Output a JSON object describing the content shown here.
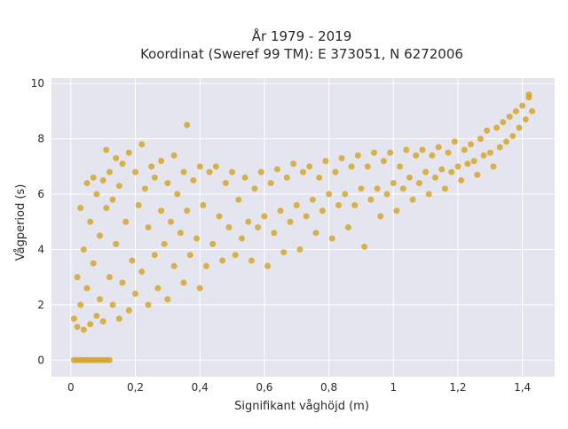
{
  "chart_data": {
    "type": "scatter",
    "title": "År 1979 - 2019",
    "subtitle": "Koordinat (Sweref 99 TM): E 373051, N 6272006",
    "xlabel": "Signifikant våghöjd (m)",
    "ylabel": "Vågperiod (s)",
    "xlim": [
      -0.06,
      1.5
    ],
    "ylim": [
      -0.6,
      10.2
    ],
    "x_ticks": [
      0,
      0.2,
      0.4,
      0.6,
      0.8,
      1,
      1.2,
      1.4
    ],
    "x_tick_labels": [
      "0",
      "0,2",
      "0,4",
      "0,6",
      "0,8",
      "1",
      "1,2",
      "1,4"
    ],
    "y_ticks": [
      0,
      2,
      4,
      6,
      8,
      10
    ],
    "y_tick_labels": [
      "0",
      "2",
      "4",
      "6",
      "8",
      "10"
    ],
    "grid": true,
    "marker_color": "#D4A21F",
    "background_color": "#E5E5EF",
    "points": [
      [
        0.01,
        0
      ],
      [
        0.02,
        0
      ],
      [
        0.03,
        0
      ],
      [
        0.04,
        0
      ],
      [
        0.05,
        0
      ],
      [
        0.06,
        0
      ],
      [
        0.07,
        0
      ],
      [
        0.08,
        0
      ],
      [
        0.09,
        0
      ],
      [
        0.1,
        0
      ],
      [
        0.11,
        0
      ],
      [
        0.12,
        0
      ],
      [
        0.01,
        1.5
      ],
      [
        0.02,
        1.2
      ],
      [
        0.02,
        3.0
      ],
      [
        0.03,
        5.5
      ],
      [
        0.03,
        2.0
      ],
      [
        0.04,
        1.1
      ],
      [
        0.04,
        4.0
      ],
      [
        0.05,
        6.4
      ],
      [
        0.05,
        2.6
      ],
      [
        0.06,
        1.3
      ],
      [
        0.06,
        5.0
      ],
      [
        0.07,
        6.6
      ],
      [
        0.07,
        3.5
      ],
      [
        0.08,
        1.6
      ],
      [
        0.08,
        6.0
      ],
      [
        0.09,
        2.2
      ],
      [
        0.09,
        4.5
      ],
      [
        0.1,
        6.5
      ],
      [
        0.1,
        1.4
      ],
      [
        0.11,
        5.5
      ],
      [
        0.11,
        7.6
      ],
      [
        0.12,
        3.0
      ],
      [
        0.12,
        6.8
      ],
      [
        0.13,
        2.0
      ],
      [
        0.13,
        5.8
      ],
      [
        0.14,
        7.3
      ],
      [
        0.14,
        4.2
      ],
      [
        0.15,
        1.5
      ],
      [
        0.15,
        6.3
      ],
      [
        0.16,
        2.8
      ],
      [
        0.16,
        7.1
      ],
      [
        0.17,
        5.0
      ],
      [
        0.18,
        1.8
      ],
      [
        0.18,
        7.5
      ],
      [
        0.19,
        3.6
      ],
      [
        0.2,
        6.8
      ],
      [
        0.2,
        2.4
      ],
      [
        0.21,
        5.6
      ],
      [
        0.22,
        7.8
      ],
      [
        0.22,
        3.2
      ],
      [
        0.23,
        6.2
      ],
      [
        0.24,
        2.0
      ],
      [
        0.24,
        4.8
      ],
      [
        0.25,
        7.0
      ],
      [
        0.26,
        3.8
      ],
      [
        0.26,
        6.6
      ],
      [
        0.27,
        2.6
      ],
      [
        0.28,
        5.4
      ],
      [
        0.28,
        7.2
      ],
      [
        0.29,
        4.2
      ],
      [
        0.3,
        6.4
      ],
      [
        0.3,
        2.2
      ],
      [
        0.31,
        5.0
      ],
      [
        0.32,
        7.4
      ],
      [
        0.32,
        3.4
      ],
      [
        0.33,
        6.0
      ],
      [
        0.34,
        4.6
      ],
      [
        0.35,
        6.8
      ],
      [
        0.35,
        2.8
      ],
      [
        0.36,
        8.5
      ],
      [
        0.36,
        5.4
      ],
      [
        0.37,
        3.8
      ],
      [
        0.38,
        6.5
      ],
      [
        0.39,
        4.4
      ],
      [
        0.4,
        7.0
      ],
      [
        0.4,
        2.6
      ],
      [
        0.41,
        5.6
      ],
      [
        0.42,
        3.4
      ],
      [
        0.43,
        6.8
      ],
      [
        0.44,
        4.2
      ],
      [
        0.45,
        7.0
      ],
      [
        0.46,
        5.2
      ],
      [
        0.47,
        3.6
      ],
      [
        0.48,
        6.4
      ],
      [
        0.49,
        4.8
      ],
      [
        0.5,
        6.8
      ],
      [
        0.51,
        3.8
      ],
      [
        0.52,
        5.8
      ],
      [
        0.53,
        4.4
      ],
      [
        0.54,
        6.6
      ],
      [
        0.55,
        5.0
      ],
      [
        0.56,
        3.6
      ],
      [
        0.57,
        6.2
      ],
      [
        0.58,
        4.8
      ],
      [
        0.59,
        6.8
      ],
      [
        0.6,
        5.2
      ],
      [
        0.61,
        3.4
      ],
      [
        0.62,
        6.4
      ],
      [
        0.63,
        4.6
      ],
      [
        0.64,
        6.9
      ],
      [
        0.65,
        5.4
      ],
      [
        0.66,
        3.9
      ],
      [
        0.67,
        6.6
      ],
      [
        0.68,
        5.0
      ],
      [
        0.69,
        7.1
      ],
      [
        0.7,
        5.6
      ],
      [
        0.71,
        4.0
      ],
      [
        0.72,
        6.8
      ],
      [
        0.73,
        5.2
      ],
      [
        0.74,
        7.0
      ],
      [
        0.75,
        5.8
      ],
      [
        0.76,
        4.6
      ],
      [
        0.77,
        6.6
      ],
      [
        0.78,
        5.4
      ],
      [
        0.79,
        7.2
      ],
      [
        0.8,
        6.0
      ],
      [
        0.81,
        4.4
      ],
      [
        0.82,
        6.8
      ],
      [
        0.83,
        5.6
      ],
      [
        0.84,
        7.3
      ],
      [
        0.85,
        6.0
      ],
      [
        0.86,
        4.8
      ],
      [
        0.87,
        7.0
      ],
      [
        0.88,
        5.6
      ],
      [
        0.89,
        7.4
      ],
      [
        0.9,
        6.2
      ],
      [
        0.91,
        4.1
      ],
      [
        0.92,
        7.0
      ],
      [
        0.93,
        5.8
      ],
      [
        0.94,
        7.5
      ],
      [
        0.95,
        6.2
      ],
      [
        0.96,
        5.2
      ],
      [
        0.97,
        7.2
      ],
      [
        0.98,
        6.0
      ],
      [
        0.99,
        7.5
      ],
      [
        1.0,
        6.4
      ],
      [
        1.01,
        5.4
      ],
      [
        1.02,
        7.0
      ],
      [
        1.03,
        6.2
      ],
      [
        1.04,
        7.6
      ],
      [
        1.05,
        6.6
      ],
      [
        1.06,
        5.8
      ],
      [
        1.07,
        7.4
      ],
      [
        1.08,
        6.4
      ],
      [
        1.09,
        7.6
      ],
      [
        1.1,
        6.8
      ],
      [
        1.11,
        6.0
      ],
      [
        1.12,
        7.4
      ],
      [
        1.13,
        6.6
      ],
      [
        1.14,
        7.7
      ],
      [
        1.15,
        6.9
      ],
      [
        1.16,
        6.2
      ],
      [
        1.17,
        7.5
      ],
      [
        1.18,
        6.8
      ],
      [
        1.19,
        7.9
      ],
      [
        1.2,
        7.0
      ],
      [
        1.21,
        6.5
      ],
      [
        1.22,
        7.6
      ],
      [
        1.23,
        7.1
      ],
      [
        1.24,
        7.8
      ],
      [
        1.25,
        7.2
      ],
      [
        1.26,
        6.7
      ],
      [
        1.27,
        8.0
      ],
      [
        1.28,
        7.4
      ],
      [
        1.29,
        8.3
      ],
      [
        1.3,
        7.5
      ],
      [
        1.31,
        7.0
      ],
      [
        1.32,
        8.4
      ],
      [
        1.33,
        7.7
      ],
      [
        1.34,
        8.6
      ],
      [
        1.35,
        7.9
      ],
      [
        1.36,
        8.8
      ],
      [
        1.37,
        8.1
      ],
      [
        1.38,
        9.0
      ],
      [
        1.39,
        8.4
      ],
      [
        1.4,
        9.2
      ],
      [
        1.41,
        8.7
      ],
      [
        1.42,
        9.6
      ],
      [
        1.43,
        9.0
      ],
      [
        1.42,
        9.5
      ]
    ]
  }
}
